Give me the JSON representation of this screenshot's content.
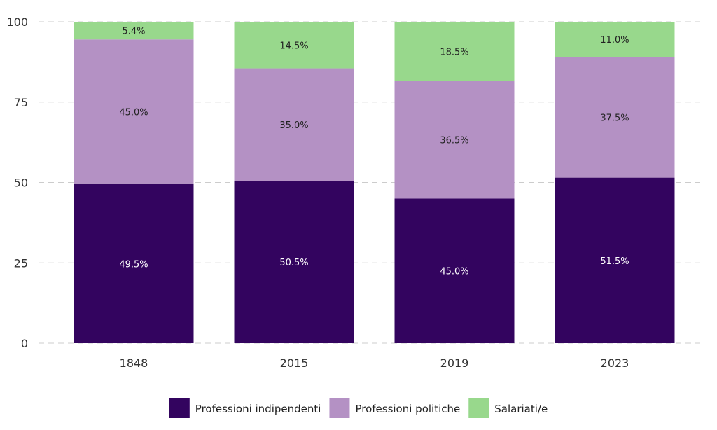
{
  "chart_data": {
    "type": "bar",
    "stacked": true,
    "categories": [
      "1848",
      "2015",
      "2019",
      "2023"
    ],
    "series": [
      {
        "name": "Professioni indipendenti",
        "color": "#33045f",
        "label_color": "#ffffff",
        "values": [
          49.5,
          50.5,
          45.0,
          51.5
        ],
        "labels": [
          "49.5%",
          "50.5%",
          "45.0%",
          "51.5%"
        ]
      },
      {
        "name": "Professioni politiche",
        "color": "#b491c4",
        "label_color": "#222222",
        "values": [
          45.0,
          35.0,
          36.5,
          37.5
        ],
        "labels": [
          "45.0%",
          "35.0%",
          "36.5%",
          "37.5%"
        ]
      },
      {
        "name": "Salariati/e",
        "color": "#98d88c",
        "label_color": "#222222",
        "values": [
          5.4,
          14.5,
          18.5,
          11.0
        ],
        "labels": [
          "5.4%",
          "14.5%",
          "18.5%",
          "11.0%"
        ]
      }
    ],
    "ylim": [
      0,
      100
    ],
    "yticks": [
      0,
      25,
      50,
      75,
      100
    ],
    "ytick_labels": [
      "0",
      "25",
      "50",
      "75",
      "100"
    ],
    "grid": true,
    "legend_position": "bottom"
  }
}
